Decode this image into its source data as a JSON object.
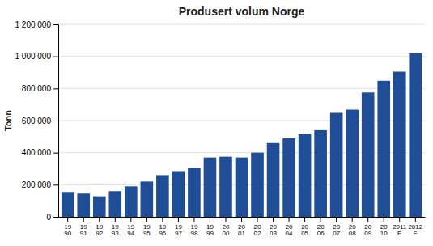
{
  "chart_data": {
    "type": "bar",
    "title": "Produsert volum Norge",
    "ylabel": "Tonn",
    "categories": [
      "19\n90",
      "19\n91",
      "19\n92",
      "19\n93",
      "19\n94",
      "19\n95",
      "19\n96",
      "19\n97",
      "19\n98",
      "19\n99",
      "20\n00",
      "20\n01",
      "20\n02",
      "20\n03",
      "20\n04",
      "20\n05",
      "20\n06",
      "20\n07",
      "20\n08",
      "20\n09",
      "20\n10",
      "2011\nE",
      "2012\nE"
    ],
    "values": [
      155000,
      145000,
      128000,
      160000,
      190000,
      220000,
      260000,
      285000,
      305000,
      370000,
      375000,
      370000,
      400000,
      460000,
      490000,
      515000,
      540000,
      648000,
      668000,
      775000,
      848000,
      905000,
      1020000
    ],
    "color": "#1F4E96",
    "ylim": [
      0,
      1200000
    ],
    "yticks": [
      0,
      {
        "value": 200000,
        "label": "200 000"
      },
      {
        "value": 400000,
        "label": "400 000"
      },
      {
        "value": 600000,
        "label": "600 000"
      },
      {
        "value": 800000,
        "label": "800 000"
      },
      {
        "value": 1000000,
        "label": "1 000 000"
      },
      {
        "value": 1200000,
        "label": "1 200 000"
      }
    ],
    "grid": true
  }
}
